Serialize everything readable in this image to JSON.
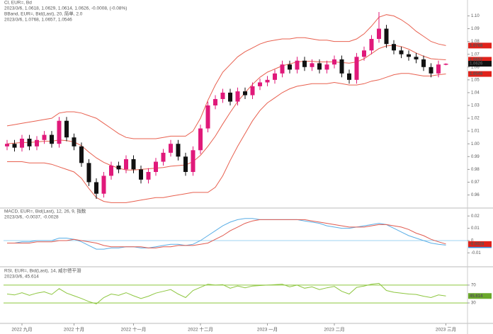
{
  "chart_data": [
    {
      "type": "candlestick",
      "headers": [
        {
          "text": "Cl, EUR=, Bd",
          "color": "#333333"
        },
        {
          "text": "2023/3/6, 1.0618, 1.0629, 1.0614, 1.0626, -0.0008, (-0.08%)",
          "color": "#333333"
        },
        {
          "text": "BBand, EUR=, Bid(Last), 20, 简单, 2.0",
          "color": "#e0473a"
        },
        {
          "text": "2023/3/6, 1.0768, 1.0657, 1.0546",
          "color": "#e0473a"
        }
      ],
      "ylim": [
        0.952,
        1.108
      ],
      "yticks": [
        0.96,
        0.97,
        0.98,
        0.99,
        {
          "value": 1,
          "label": "1.00"
        },
        1.01,
        1.02,
        1.03,
        1.04,
        1.05,
        1.06,
        1.07,
        1.08,
        1.09,
        {
          "value": 1.1,
          "label": "1.10"
        }
      ],
      "grid": false,
      "up_color": "#e0197a",
      "down_color": "#111111",
      "open": [
        0.998,
        1.0,
        0.997,
        1.004,
        0.998,
        1.003,
        1.007,
        1.0,
        1.018,
        1.005,
        0.998,
        0.985,
        0.97,
        0.961,
        0.975,
        0.983,
        0.98,
        0.988,
        0.98,
        0.972,
        0.978,
        0.986,
        0.993,
        1.0,
        0.99,
        0.978,
        0.995,
        1.012,
        1.03,
        1.035,
        1.04,
        1.033,
        1.041,
        1.038,
        1.045,
        1.048,
        1.05,
        1.055,
        1.062,
        1.058,
        1.065,
        1.06,
        1.063,
        1.058,
        1.062,
        1.066,
        1.055,
        1.05,
        1.068,
        1.073,
        1.082,
        1.09,
        1.078,
        1.073,
        1.07,
        1.068,
        1.066,
        1.06,
        1.055,
        1.0618
      ],
      "high": [
        1.003,
        1.003,
        1.007,
        1.007,
        1.006,
        1.01,
        1.01,
        1.021,
        1.021,
        1.008,
        1.001,
        0.988,
        0.973,
        0.978,
        0.986,
        0.986,
        0.991,
        0.991,
        0.983,
        0.981,
        0.989,
        0.996,
        1.003,
        1.003,
        0.993,
        0.998,
        1.015,
        1.033,
        1.038,
        1.043,
        1.043,
        1.044,
        1.044,
        1.048,
        1.051,
        1.053,
        1.058,
        1.065,
        1.065,
        1.068,
        1.068,
        1.066,
        1.066,
        1.065,
        1.069,
        1.069,
        1.058,
        1.071,
        1.076,
        1.085,
        1.103,
        1.093,
        1.081,
        1.076,
        1.073,
        1.071,
        1.069,
        1.063,
        1.065,
        1.0629
      ],
      "low": [
        0.995,
        0.994,
        0.994,
        0.995,
        0.995,
        1.0,
        0.997,
        0.997,
        1.002,
        0.995,
        0.982,
        0.967,
        0.957,
        0.958,
        0.972,
        0.977,
        0.977,
        0.977,
        0.969,
        0.969,
        0.975,
        0.983,
        0.99,
        0.987,
        0.975,
        0.975,
        0.992,
        1.009,
        1.027,
        1.032,
        1.03,
        1.03,
        1.035,
        1.035,
        1.042,
        1.045,
        1.047,
        1.052,
        1.055,
        1.055,
        1.057,
        1.057,
        1.055,
        1.055,
        1.059,
        1.052,
        1.047,
        1.047,
        1.065,
        1.07,
        1.079,
        1.075,
        1.07,
        1.067,
        1.065,
        1.063,
        1.057,
        1.052,
        1.052,
        1.0614
      ],
      "close": [
        1.0,
        0.997,
        1.004,
        0.998,
        1.003,
        1.007,
        1.0,
        1.018,
        1.005,
        0.998,
        0.985,
        0.97,
        0.961,
        0.975,
        0.983,
        0.98,
        0.988,
        0.98,
        0.972,
        0.978,
        0.986,
        0.993,
        1.0,
        0.99,
        0.978,
        0.995,
        1.012,
        1.03,
        1.035,
        1.04,
        1.033,
        1.041,
        1.038,
        1.045,
        1.048,
        1.05,
        1.055,
        1.062,
        1.058,
        1.065,
        1.06,
        1.063,
        1.058,
        1.062,
        1.066,
        1.055,
        1.05,
        1.068,
        1.073,
        1.082,
        1.09,
        1.078,
        1.073,
        1.07,
        1.068,
        1.066,
        1.06,
        1.055,
        1.062,
        1.0626
      ],
      "close_label_color": "#111111",
      "series": [
        {
          "color": "#e8604f",
          "label_color": "#e0221b",
          "values": [
            1.014,
            1.015,
            1.016,
            1.017,
            1.018,
            1.019,
            1.02,
            1.024,
            1.025,
            1.025,
            1.024,
            1.022,
            1.02,
            1.016,
            1.012,
            1.008,
            1.005,
            1.004,
            1.004,
            1.004,
            1.004,
            1.005,
            1.006,
            1.006,
            1.006,
            1.01,
            1.02,
            1.034,
            1.046,
            1.056,
            1.062,
            1.068,
            1.072,
            1.075,
            1.078,
            1.08,
            1.081,
            1.082,
            1.082,
            1.083,
            1.083,
            1.082,
            1.081,
            1.081,
            1.08,
            1.08,
            1.08,
            1.082,
            1.086,
            1.092,
            1.099,
            1.101,
            1.1,
            1.097,
            1.093,
            1.088,
            1.084,
            1.08,
            1.078,
            1.0768
          ]
        },
        {
          "color": "#e8604f",
          "label_color": "#e0221b",
          "values": [
            1.0,
            1.0005,
            1.001,
            1.001,
            1.0015,
            1.002,
            1.002,
            1.003,
            1.0025,
            1.0015,
            0.9985,
            0.9935,
            0.989,
            0.9855,
            0.983,
            0.981,
            0.9795,
            0.9795,
            0.98,
            0.9805,
            0.981,
            0.9815,
            0.9825,
            0.983,
            0.9835,
            0.986,
            0.991,
            0.998,
            1.006,
            1.0155,
            1.0245,
            1.033,
            1.04,
            1.0465,
            1.052,
            1.056,
            1.0585,
            1.061,
            1.0625,
            1.064,
            1.0645,
            1.0645,
            1.064,
            1.064,
            1.064,
            1.0635,
            1.063,
            1.064,
            1.0665,
            1.0705,
            1.0745,
            1.0765,
            1.077,
            1.076,
            1.074,
            1.071,
            1.0685,
            1.0665,
            1.066,
            1.0657
          ]
        },
        {
          "color": "#e8604f",
          "label_color": "#e0221b",
          "values": [
            0.986,
            0.986,
            0.986,
            0.985,
            0.985,
            0.985,
            0.984,
            0.982,
            0.98,
            0.978,
            0.973,
            0.965,
            0.958,
            0.955,
            0.954,
            0.954,
            0.954,
            0.955,
            0.956,
            0.957,
            0.958,
            0.958,
            0.959,
            0.96,
            0.961,
            0.962,
            0.962,
            0.962,
            0.966,
            0.975,
            0.987,
            0.998,
            1.008,
            1.018,
            1.026,
            1.032,
            1.036,
            1.04,
            1.043,
            1.045,
            1.046,
            1.047,
            1.047,
            1.047,
            1.048,
            1.047,
            1.046,
            1.046,
            1.047,
            1.049,
            1.05,
            1.052,
            1.054,
            1.055,
            1.055,
            1.054,
            1.053,
            1.053,
            1.054,
            1.0546
          ]
        }
      ]
    },
    {
      "type": "line",
      "headers": [
        {
          "text": "MACD, EUR=, Bid(Last), 12, 26, 9, 指数",
          "color": "#3a7bd5"
        },
        {
          "text": "2023/3/6, -0.0037, -0.0028",
          "color": "#3a7bd5"
        }
      ],
      "ylim": [
        -0.019,
        0.023
      ],
      "yticks": [
        -0.01,
        0,
        0.01,
        0.02
      ],
      "grid": false,
      "ref_lines": [
        0
      ],
      "ref_color": "#9fd3f0",
      "series": [
        {
          "color": "#5aaee6",
          "label_color": "#3a8fd8",
          "values": [
            -0.002,
            -0.002,
            -0.001,
            -0.001,
            0.0,
            0.0,
            0.0,
            0.002,
            0.002,
            0.001,
            -0.001,
            -0.004,
            -0.007,
            -0.007,
            -0.006,
            -0.006,
            -0.005,
            -0.005,
            -0.006,
            -0.006,
            -0.005,
            -0.004,
            -0.003,
            -0.003,
            -0.004,
            -0.003,
            0.0,
            0.004,
            0.008,
            0.012,
            0.015,
            0.017,
            0.018,
            0.018,
            0.017,
            0.017,
            0.017,
            0.017,
            0.017,
            0.017,
            0.016,
            0.015,
            0.014,
            0.012,
            0.011,
            0.01,
            0.01,
            0.011,
            0.012,
            0.013,
            0.014,
            0.013,
            0.01,
            0.007,
            0.004,
            0.002,
            0.0,
            -0.002,
            -0.003,
            -0.0037
          ]
        },
        {
          "color": "#e05a4f",
          "label_color": "#e0221b",
          "values": [
            -0.002,
            -0.002,
            -0.002,
            -0.002,
            -0.001,
            -0.001,
            -0.001,
            0.0,
            0.0,
            0.001,
            0.0,
            -0.001,
            -0.002,
            -0.004,
            -0.005,
            -0.005,
            -0.005,
            -0.005,
            -0.005,
            -0.006,
            -0.006,
            -0.005,
            -0.005,
            -0.004,
            -0.004,
            -0.004,
            -0.003,
            -0.002,
            0.001,
            0.004,
            0.008,
            0.011,
            0.014,
            0.016,
            0.017,
            0.017,
            0.017,
            0.017,
            0.017,
            0.017,
            0.017,
            0.016,
            0.015,
            0.014,
            0.013,
            0.012,
            0.011,
            0.011,
            0.011,
            0.012,
            0.013,
            0.013,
            0.012,
            0.011,
            0.009,
            0.006,
            0.004,
            0.001,
            -0.001,
            -0.0028
          ]
        }
      ]
    },
    {
      "type": "line",
      "headers": [
        {
          "text": "RSI, EUR=, Bid(Last), 14, 威尔德平滑",
          "color": "#6aa82a"
        },
        {
          "text": "2023/3/6, 45.614",
          "color": "#6aa82a"
        }
      ],
      "ylim": [
        0,
        100
      ],
      "yticks": [
        30,
        70
      ],
      "grid": false,
      "ref_lines": [
        30,
        70
      ],
      "ref_color": "#8dc63f",
      "categories": [
        null,
        null,
        "2022 九月",
        null,
        null,
        null,
        null,
        null,
        null,
        "2022 十月",
        null,
        null,
        null,
        null,
        null,
        null,
        null,
        "2022 十一月",
        null,
        null,
        null,
        null,
        null,
        null,
        null,
        null,
        "2022 十二月",
        null,
        null,
        null,
        null,
        null,
        null,
        null,
        null,
        "2023 一月",
        null,
        null,
        null,
        null,
        null,
        null,
        null,
        null,
        "2023 二月",
        null,
        null,
        null,
        null,
        null,
        null,
        null,
        null,
        null,
        null,
        null,
        null,
        null,
        null,
        "2023 三月"
      ],
      "series": [
        {
          "color": "#8dc63f",
          "label_color": "#6aa82a",
          "values": [
            50,
            48,
            53,
            47,
            52,
            55,
            49,
            62,
            52,
            46,
            40,
            33,
            28,
            42,
            50,
            47,
            53,
            46,
            40,
            45,
            52,
            56,
            60,
            50,
            42,
            58,
            65,
            72,
            70,
            71,
            63,
            68,
            64,
            68,
            69,
            70,
            71,
            72,
            66,
            70,
            63,
            66,
            60,
            64,
            67,
            56,
            50,
            65,
            68,
            72,
            74,
            58,
            54,
            52,
            50,
            49,
            45,
            42,
            48,
            45.614
          ]
        }
      ]
    }
  ]
}
